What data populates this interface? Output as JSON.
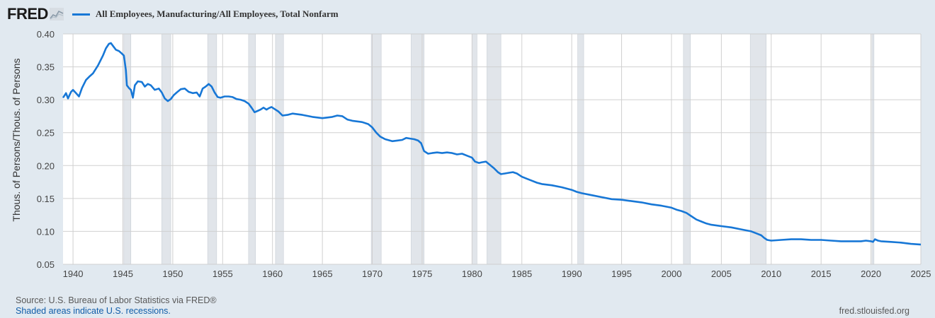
{
  "brand": {
    "logo_text": "FRED",
    "logo_icon": "line-chart-icon"
  },
  "legend": {
    "label": "All Employees, Manufacturing/All Employees, Total Nonfarm",
    "color": "#1777d6"
  },
  "footer": {
    "source": "Source: U.S. Bureau of Labor Statistics via FRED®",
    "note": "Shaded areas indicate U.S. recessions.",
    "url": "fred.stlouisfed.org"
  },
  "colors": {
    "background": "#e1e9f0",
    "plot_background": "#ffffff",
    "line": "#1777d6",
    "recession": "#e1e5ea",
    "grid": "#d0d0d0"
  },
  "chart_data": {
    "type": "line",
    "title": "",
    "ylabel": "Thous. of Persons/Thous. of Persons",
    "xlabel": "",
    "xlim": [
      1939,
      2025
    ],
    "ylim": [
      0.05,
      0.4
    ],
    "xticks": [
      1940,
      1945,
      1950,
      1955,
      1960,
      1965,
      1970,
      1975,
      1980,
      1985,
      1990,
      1995,
      2000,
      2005,
      2010,
      2015,
      2020,
      2025
    ],
    "yticks": [
      0.05,
      0.1,
      0.15,
      0.2,
      0.25,
      0.3,
      0.35,
      0.4
    ],
    "ytick_labels": [
      "0.05",
      "0.10",
      "0.15",
      "0.20",
      "0.25",
      "0.30",
      "0.35",
      "0.40"
    ],
    "grid": true,
    "recessions": [
      [
        1945.1,
        1945.8
      ],
      [
        1948.9,
        1949.8
      ],
      [
        1953.5,
        1954.4
      ],
      [
        1957.6,
        1958.3
      ],
      [
        1960.3,
        1961.1
      ],
      [
        1969.9,
        1970.9
      ],
      [
        1973.9,
        1975.2
      ],
      [
        1980.0,
        1980.5
      ],
      [
        1981.5,
        1982.9
      ],
      [
        1990.6,
        1991.2
      ],
      [
        2001.2,
        2001.9
      ],
      [
        2007.9,
        2009.5
      ],
      [
        2020.1,
        2020.3
      ]
    ],
    "series": [
      {
        "name": "All Employees, Manufacturing/All Employees, Total Nonfarm",
        "x": [
          1939.0,
          1939.3,
          1939.5,
          1939.8,
          1940.0,
          1940.3,
          1940.6,
          1940.9,
          1941.3,
          1941.7,
          1942.0,
          1942.5,
          1943.0,
          1943.3,
          1943.6,
          1943.8,
          1944.0,
          1944.3,
          1944.6,
          1944.9,
          1945.1,
          1945.3,
          1945.4,
          1945.6,
          1945.8,
          1946.0,
          1946.2,
          1946.5,
          1946.9,
          1947.2,
          1947.5,
          1947.8,
          1948.2,
          1948.6,
          1948.9,
          1949.2,
          1949.5,
          1949.8,
          1950.1,
          1950.4,
          1950.8,
          1951.2,
          1951.6,
          1952.0,
          1952.4,
          1952.7,
          1953.0,
          1953.3,
          1953.6,
          1953.9,
          1954.2,
          1954.5,
          1954.8,
          1955.2,
          1955.6,
          1956.0,
          1956.4,
          1956.8,
          1957.2,
          1957.6,
          1957.9,
          1958.2,
          1958.5,
          1958.8,
          1959.1,
          1959.4,
          1959.6,
          1959.9,
          1960.2,
          1960.6,
          1961.0,
          1961.5,
          1962.0,
          1963.0,
          1964.0,
          1964.5,
          1965.0,
          1965.5,
          1966.0,
          1966.5,
          1967.0,
          1967.5,
          1968.0,
          1969.0,
          1969.6,
          1970.0,
          1970.4,
          1970.8,
          1971.3,
          1972.0,
          1972.5,
          1973.0,
          1973.4,
          1973.8,
          1974.2,
          1974.6,
          1974.9,
          1975.2,
          1975.6,
          1976.0,
          1976.5,
          1977.0,
          1977.5,
          1978.0,
          1978.5,
          1979.0,
          1979.5,
          1980.0,
          1980.3,
          1980.7,
          1981.0,
          1981.4,
          1981.8,
          1982.2,
          1982.6,
          1982.9,
          1983.3,
          1983.7,
          1984.1,
          1984.5,
          1985.0,
          1985.5,
          1986.0,
          1986.5,
          1987.0,
          1988.0,
          1989.0,
          1990.0,
          1990.5,
          1991.0,
          1992.0,
          1993.0,
          1994.0,
          1995.0,
          1996.0,
          1997.0,
          1998.0,
          1999.0,
          2000.0,
          2000.5,
          2001.0,
          2001.5,
          2002.0,
          2002.5,
          2003.0,
          2003.5,
          2004.0,
          2005.0,
          2006.0,
          2007.0,
          2008.0,
          2008.5,
          2009.0,
          2009.3,
          2009.6,
          2010.0,
          2011.0,
          2012.0,
          2013.0,
          2014.0,
          2015.0,
          2016.0,
          2017.0,
          2018.0,
          2019.0,
          2019.5,
          2020.0,
          2020.2,
          2020.4,
          2020.7,
          2021.0,
          2022.0,
          2023.0,
          2024.0,
          2025.0
        ],
        "y": [
          0.303,
          0.31,
          0.302,
          0.312,
          0.315,
          0.31,
          0.305,
          0.318,
          0.33,
          0.336,
          0.34,
          0.352,
          0.367,
          0.378,
          0.385,
          0.386,
          0.382,
          0.376,
          0.374,
          0.37,
          0.367,
          0.345,
          0.322,
          0.318,
          0.315,
          0.303,
          0.322,
          0.328,
          0.327,
          0.32,
          0.324,
          0.322,
          0.315,
          0.317,
          0.311,
          0.302,
          0.298,
          0.301,
          0.307,
          0.311,
          0.316,
          0.317,
          0.312,
          0.31,
          0.311,
          0.305,
          0.317,
          0.32,
          0.324,
          0.32,
          0.311,
          0.304,
          0.303,
          0.305,
          0.305,
          0.304,
          0.301,
          0.3,
          0.298,
          0.294,
          0.288,
          0.281,
          0.283,
          0.285,
          0.288,
          0.285,
          0.287,
          0.289,
          0.286,
          0.282,
          0.276,
          0.277,
          0.279,
          0.277,
          0.274,
          0.273,
          0.272,
          0.273,
          0.274,
          0.276,
          0.275,
          0.27,
          0.268,
          0.266,
          0.263,
          0.258,
          0.25,
          0.244,
          0.24,
          0.237,
          0.238,
          0.239,
          0.242,
          0.241,
          0.24,
          0.238,
          0.234,
          0.222,
          0.218,
          0.219,
          0.22,
          0.219,
          0.22,
          0.219,
          0.217,
          0.218,
          0.215,
          0.212,
          0.206,
          0.204,
          0.205,
          0.206,
          0.201,
          0.196,
          0.19,
          0.187,
          0.188,
          0.189,
          0.19,
          0.188,
          0.183,
          0.18,
          0.177,
          0.174,
          0.172,
          0.17,
          0.167,
          0.163,
          0.16,
          0.158,
          0.155,
          0.152,
          0.149,
          0.148,
          0.146,
          0.144,
          0.141,
          0.139,
          0.136,
          0.133,
          0.131,
          0.128,
          0.123,
          0.118,
          0.115,
          0.112,
          0.11,
          0.108,
          0.106,
          0.103,
          0.1,
          0.097,
          0.094,
          0.09,
          0.087,
          0.086,
          0.087,
          0.088,
          0.088,
          0.087,
          0.087,
          0.086,
          0.085,
          0.085,
          0.085,
          0.086,
          0.085,
          0.084,
          0.088,
          0.086,
          0.085,
          0.084,
          0.083,
          0.081,
          0.08
        ]
      }
    ]
  }
}
